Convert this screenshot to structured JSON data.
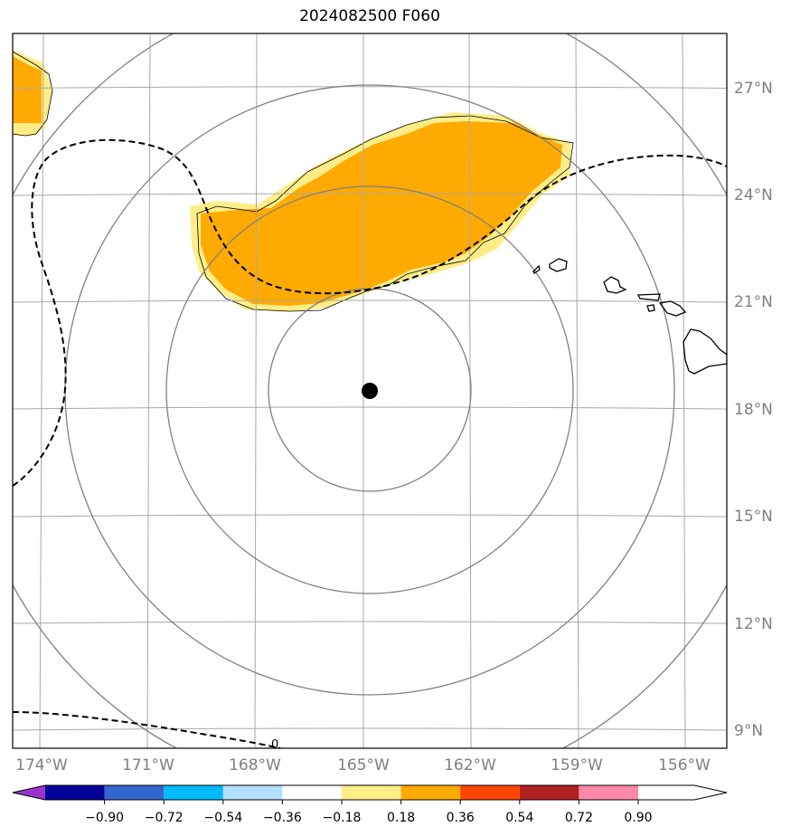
{
  "title": "2024082500 F060",
  "lat_labels": [
    "27°N",
    "24°N",
    "21°N",
    "18°N",
    "15°N",
    "12°N",
    "9°N"
  ],
  "lon_labels": [
    "174°W",
    "171°W",
    "168°W",
    "165°W",
    "162°W",
    "159°W",
    "156°W"
  ],
  "contour_label": "0",
  "colorbar": {
    "colors": [
      "#9933cc",
      "#000099",
      "#3366cc",
      "#00bbff",
      "#b3e0ff",
      "#ffffff",
      "#ffee88",
      "#ffaa00",
      "#ff4400",
      "#b02020",
      "#ff88aa"
    ],
    "tick_labels": [
      "−0.90",
      "−0.72",
      "−0.54",
      "−0.36",
      "−0.18",
      "0.18",
      "0.36",
      "0.54",
      "0.72",
      "0.90"
    ]
  }
}
